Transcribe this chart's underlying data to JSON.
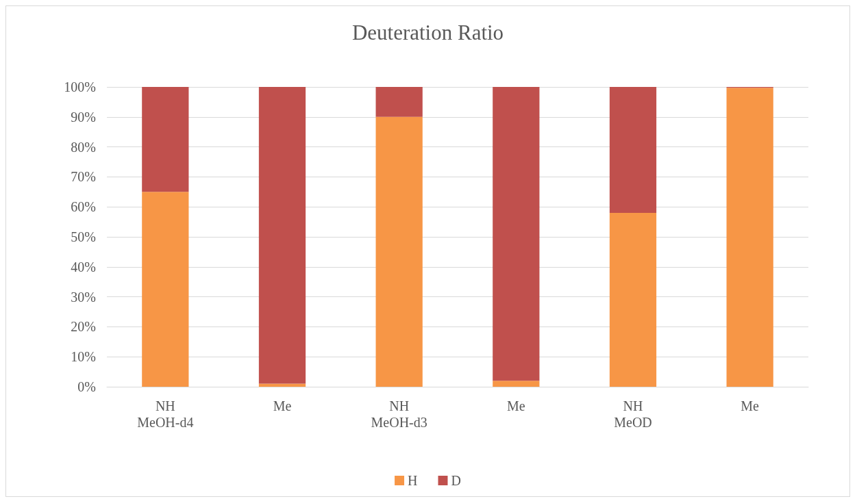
{
  "chart_data": {
    "type": "bar",
    "title": "Deuteration Ratio",
    "stacked": true,
    "categories": [
      "NH\nMeOH-d4",
      "Me",
      "NH\nMeOH-d3",
      "Me",
      "NH\nMeOD",
      "Me"
    ],
    "series": [
      {
        "name": "H",
        "color": "#f79646",
        "values": [
          65,
          1,
          90,
          2,
          58,
          99.7
        ]
      },
      {
        "name": "D",
        "color": "#c0504d",
        "values": [
          35,
          99,
          10,
          98,
          42,
          0.3
        ]
      }
    ],
    "ylim": [
      0,
      100
    ],
    "yticks": [
      {
        "value": 0,
        "label": "0%"
      },
      {
        "value": 10,
        "label": "10%"
      },
      {
        "value": 20,
        "label": "20%"
      },
      {
        "value": 30,
        "label": "30%"
      },
      {
        "value": 40,
        "label": "40%"
      },
      {
        "value": 50,
        "label": "50%"
      },
      {
        "value": 60,
        "label": "60%"
      },
      {
        "value": 70,
        "label": "70%"
      },
      {
        "value": 80,
        "label": "80%"
      },
      {
        "value": 90,
        "label": "90%"
      },
      {
        "value": 100,
        "label": "100%"
      }
    ],
    "grid": true,
    "legend": "bottom"
  }
}
